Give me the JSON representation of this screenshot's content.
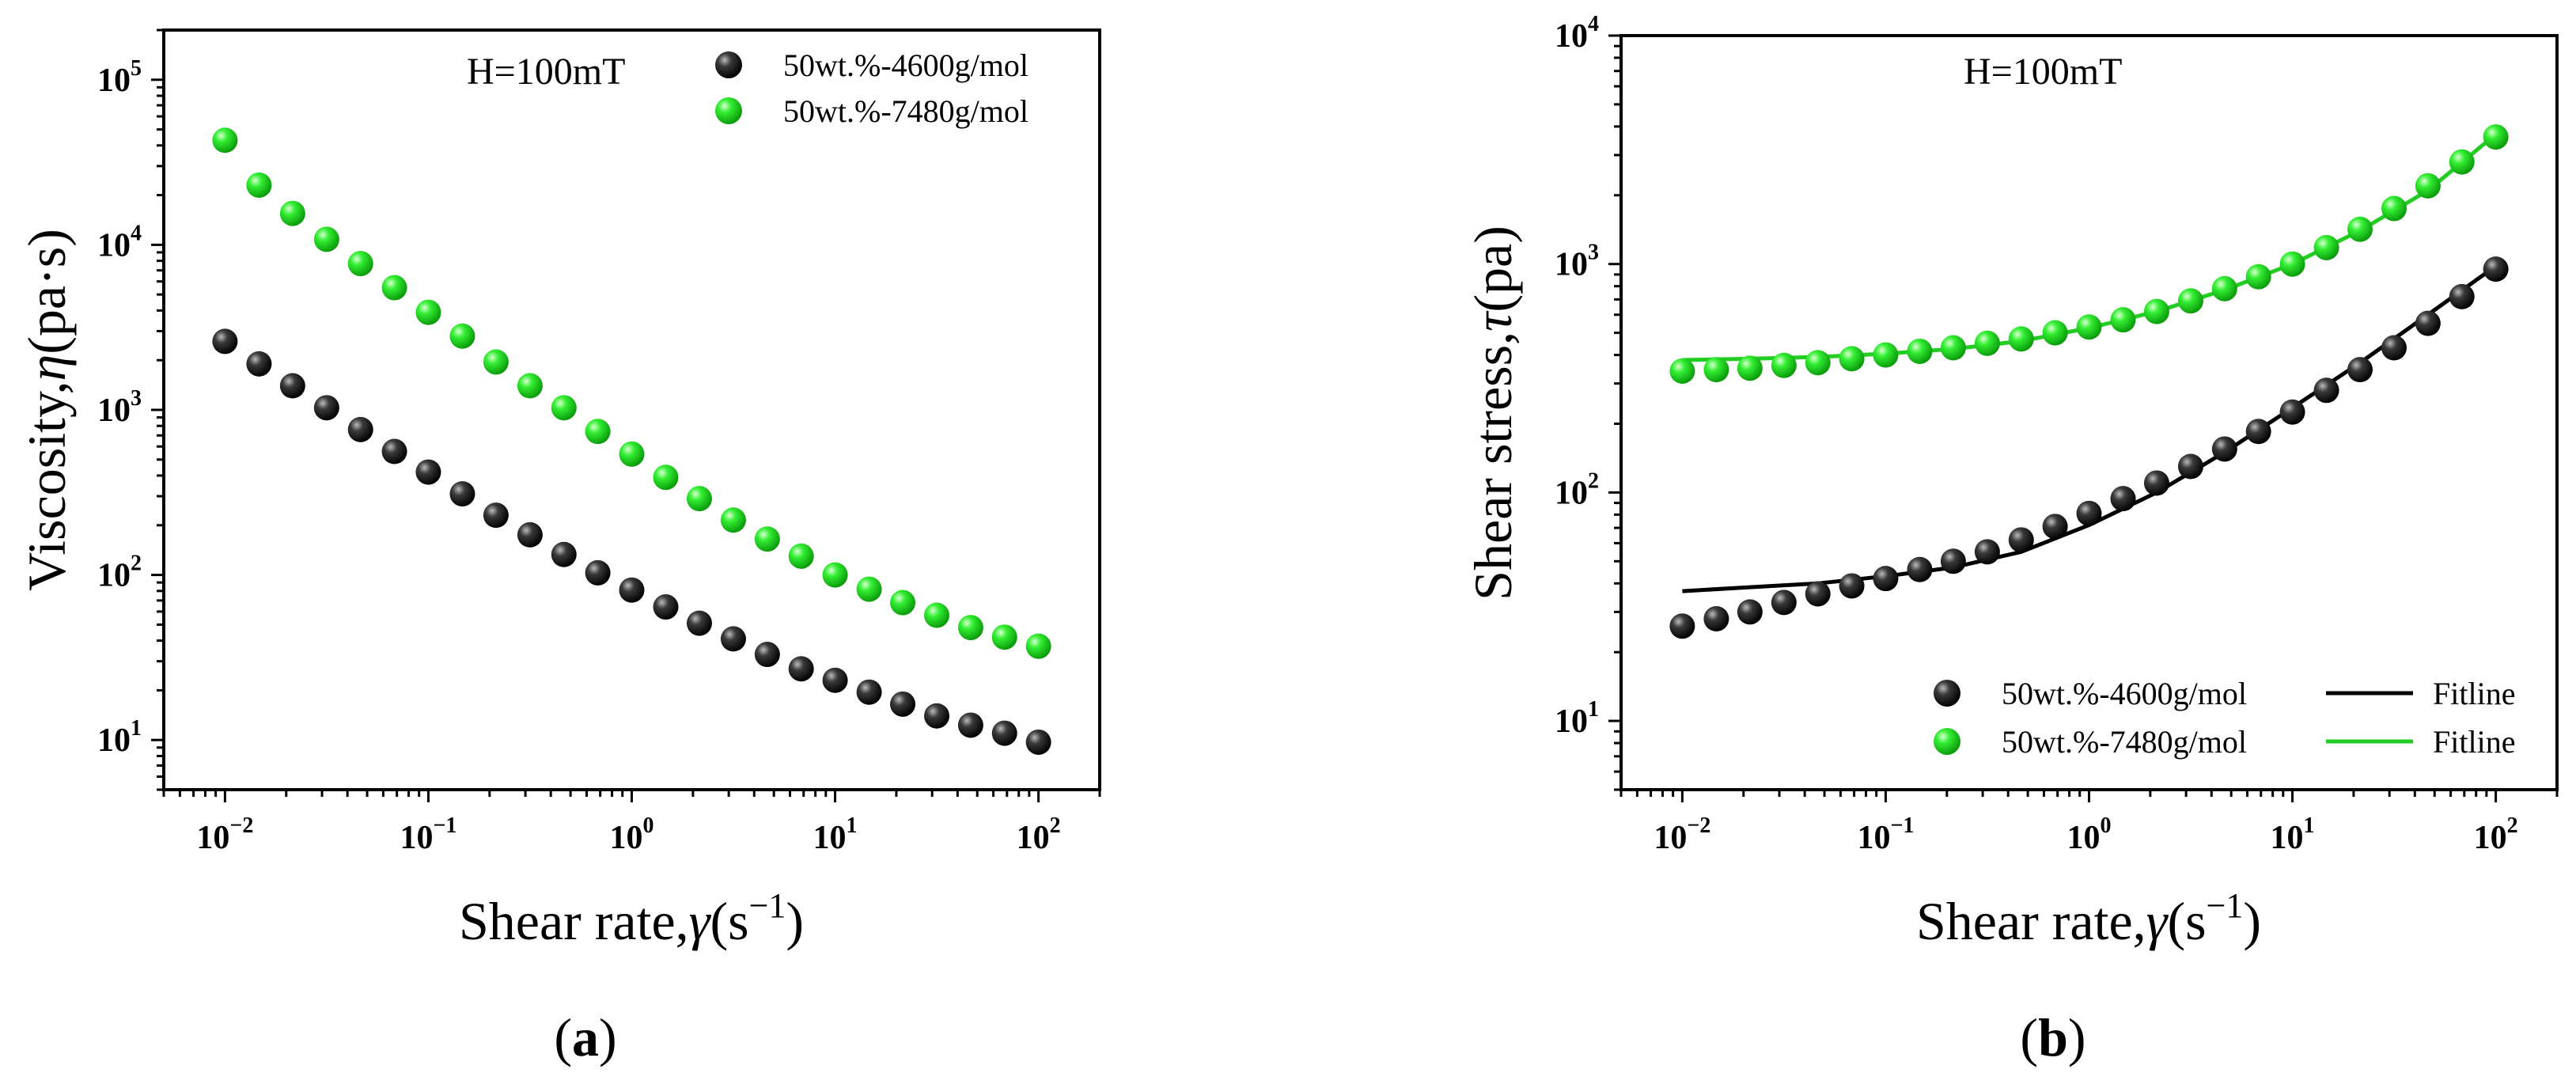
{
  "chart_data": [
    {
      "panel_label": "a",
      "type": "scatter",
      "x_scale": "log",
      "y_scale": "log",
      "xlabel": "Shear rate,γ(s⁻¹)",
      "ylabel": "Viscosity,η(pa·s)",
      "xlim": [
        0.005,
        200
      ],
      "ylim": [
        5,
        200000
      ],
      "x_ticks": [
        0.01,
        0.1,
        1,
        10,
        100
      ],
      "x_tick_labels": [
        {
          "base": "10",
          "exp": "-2"
        },
        {
          "base": "10",
          "exp": "-1"
        },
        {
          "base": "10",
          "exp": "0"
        },
        {
          "base": "10",
          "exp": "1"
        },
        {
          "base": "10",
          "exp": "2"
        }
      ],
      "y_ticks": [
        10,
        100,
        1000,
        10000,
        100000
      ],
      "y_tick_labels": [
        {
          "base": "10",
          "exp": "1"
        },
        {
          "base": "10",
          "exp": "2"
        },
        {
          "base": "10",
          "exp": "3"
        },
        {
          "base": "10",
          "exp": "4"
        },
        {
          "base": "10",
          "exp": "5"
        }
      ],
      "annotation": "H=100mT",
      "legend_position": "top-right",
      "grid": false,
      "x": [
        0.01,
        0.0147,
        0.0215,
        0.0316,
        0.0464,
        0.0681,
        0.1,
        0.147,
        0.215,
        0.316,
        0.464,
        0.681,
        1,
        1.47,
        2.15,
        3.16,
        4.64,
        6.81,
        10,
        14.7,
        21.5,
        31.6,
        46.4,
        68.1,
        100
      ],
      "series": [
        {
          "name": "50wt.%-4600g/mol",
          "color": "#1a1a1a",
          "values": [
            2600,
            1900,
            1400,
            1030,
            760,
            560,
            420,
            310,
            230,
            175,
            133,
            103,
            81,
            64,
            51,
            41,
            33,
            27,
            23,
            19.5,
            16.5,
            14,
            12.3,
            11,
            9.7
          ]
        },
        {
          "name": "50wt.%-7480g/mol",
          "color": "#22dd22",
          "values": [
            43000,
            23000,
            15500,
            10800,
            7700,
            5500,
            3900,
            2800,
            1950,
            1400,
            1030,
            740,
            540,
            390,
            290,
            215,
            165,
            130,
            100,
            82,
            68,
            57,
            48,
            42,
            37
          ]
        }
      ]
    },
    {
      "panel_label": "b",
      "type": "scatter",
      "x_scale": "log",
      "y_scale": "log",
      "xlabel": "Shear rate,γ(s⁻¹)",
      "ylabel": "Shear stress,τ(pa)",
      "xlim": [
        0.005,
        200
      ],
      "ylim": [
        5,
        10000
      ],
      "x_ticks": [
        0.01,
        0.1,
        1,
        10,
        100
      ],
      "x_tick_labels": [
        {
          "base": "10",
          "exp": "-2"
        },
        {
          "base": "10",
          "exp": "-1"
        },
        {
          "base": "10",
          "exp": "0"
        },
        {
          "base": "10",
          "exp": "1"
        },
        {
          "base": "10",
          "exp": "2"
        }
      ],
      "y_ticks": [
        10,
        100,
        1000,
        10000
      ],
      "y_tick_labels": [
        {
          "base": "10",
          "exp": "1"
        },
        {
          "base": "10",
          "exp": "2"
        },
        {
          "base": "10",
          "exp": "3"
        },
        {
          "base": "10",
          "exp": "4"
        }
      ],
      "annotation": "H=100mT",
      "legend_position": "bottom-right",
      "grid": false,
      "x": [
        0.01,
        0.0147,
        0.0215,
        0.0316,
        0.0464,
        0.0681,
        0.1,
        0.147,
        0.215,
        0.316,
        0.464,
        0.681,
        1,
        1.47,
        2.15,
        3.16,
        4.64,
        6.81,
        10,
        14.7,
        21.5,
        31.6,
        46.4,
        68.1,
        100
      ],
      "series": [
        {
          "name": "50wt.%-4600g/mol",
          "color": "#1a1a1a",
          "values": [
            26,
            28,
            30,
            33,
            36,
            39,
            42,
            46,
            50,
            55,
            62,
            71,
            81,
            94,
            110,
            130,
            155,
            185,
            225,
            280,
            345,
            430,
            550,
            720,
            950
          ]
        },
        {
          "name": "50wt.%-7480g/mol",
          "color": "#22dd22",
          "values": [
            340,
            345,
            350,
            360,
            370,
            385,
            400,
            415,
            430,
            450,
            470,
            500,
            530,
            570,
            620,
            690,
            780,
            880,
            1000,
            1180,
            1420,
            1750,
            2200,
            2800,
            3600
          ]
        }
      ],
      "fit_lines": [
        {
          "name": "Fitline",
          "color": "#000000",
          "fit_for": "50wt.%-4600g/mol",
          "x": [
            0.01,
            0.0215,
            0.0464,
            0.1,
            0.215,
            0.464,
            1,
            2.15,
            4.64,
            10,
            21.5,
            46.4,
            100
          ],
          "values": [
            37,
            38.5,
            40,
            43,
            47,
            55,
            72,
            100,
            150,
            235,
            370,
            600,
            980
          ]
        },
        {
          "name": "Fitline",
          "color": "#22cc22",
          "fit_for": "50wt.%-7480g/mol",
          "x": [
            0.01,
            0.0215,
            0.0464,
            0.1,
            0.215,
            0.464,
            1,
            2.15,
            4.64,
            10,
            21.5,
            46.4,
            100
          ],
          "values": [
            380,
            385,
            392,
            405,
            425,
            460,
            525,
            620,
            770,
            1000,
            1400,
            2100,
            3700
          ]
        }
      ]
    }
  ]
}
